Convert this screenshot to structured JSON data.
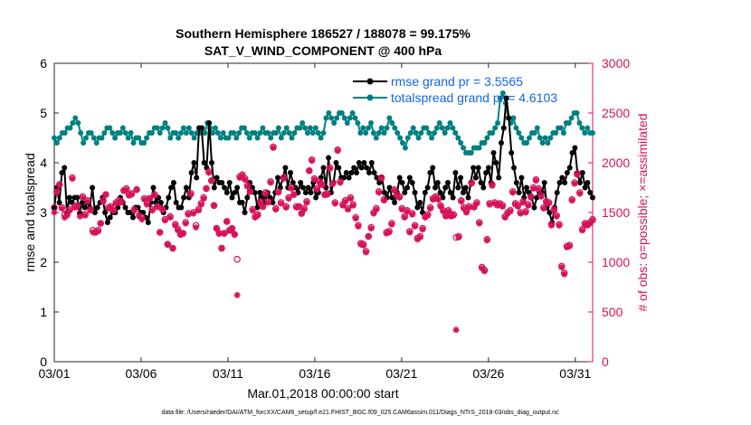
{
  "chart_data": {
    "type": "line",
    "title_line1": "Southern Hemisphere 186527 / 188078 = 99.175%",
    "title_line2": "SAT_V_WIND_COMPONENT @ 400 hPa",
    "xlabel": "Mar.01,2018 00:00:00 start",
    "ylabel_left": "rmse and totalspread",
    "ylabel_right": "# of obs: o=possible; ×=assimilated",
    "footer": "data file: /Users/raeder/DAI/ATM_forcXX/CAM6_setup/f.e21.FHIST_BGC.f09_025.CAM6assim.011/Diags_NTrS_2018-03/obs_diag_output.nc",
    "x_range": [
      1,
      32
    ],
    "x_ticks": [
      1,
      6,
      11,
      16,
      21,
      26,
      31
    ],
    "x_tick_labels": [
      "03/01",
      "03/06",
      "03/11",
      "03/16",
      "03/21",
      "03/26",
      "03/31"
    ],
    "ylim_left": [
      0,
      6
    ],
    "y_ticks_left": [
      "0",
      "1",
      "2",
      "3",
      "4",
      "5",
      "6"
    ],
    "ylim_right": [
      0,
      3000
    ],
    "y_ticks_right": [
      "0",
      "500",
      "1000",
      "1500",
      "2000",
      "2500",
      "3000"
    ],
    "series": [
      {
        "name": "rmse grand pr = 3.5565",
        "color": "#000000",
        "axis": "left",
        "values": [
          3.1,
          3.5,
          3.2,
          3.8,
          3.9,
          3.0,
          3.3,
          3.2,
          3.3,
          3.3,
          3.0,
          3.2,
          3.1,
          3.2,
          3.1,
          3.5,
          3.0,
          3.1,
          3.2,
          3.3,
          3.0,
          2.8,
          2.9,
          3.0,
          3.0,
          3.1,
          3.3,
          3.2,
          3.1,
          3.0,
          3.0,
          2.9,
          3.1,
          3.1,
          3.0,
          3.0,
          2.9,
          2.8,
          3.2,
          3.5,
          3.2,
          3.3,
          3.2,
          3.0,
          3.1,
          3.3,
          3.5,
          3.6,
          3.2,
          3.1,
          3.1,
          3.3,
          3.5,
          3.3,
          3.8,
          4.0,
          3.7,
          4.7,
          4.7,
          4.0,
          3.9,
          4.8,
          4.0,
          3.5,
          3.7,
          3.6,
          3.6,
          3.5,
          3.4,
          3.6,
          3.3,
          3.4,
          3.5,
          3.2,
          3.2,
          3.0,
          3.3,
          3.6,
          3.5,
          3.4,
          3.1,
          3.4,
          3.3,
          3.2,
          3.4,
          3.3,
          3.2,
          3.4,
          3.7,
          3.5,
          3.7,
          3.9,
          3.5,
          3.8,
          3.6,
          3.5,
          3.4,
          3.6,
          3.5,
          3.4,
          3.5,
          3.4,
          3.6,
          3.3,
          3.4,
          3.7,
          3.9,
          3.5,
          4.1,
          3.4,
          3.6,
          4.0,
          3.9,
          3.7,
          3.7,
          3.8,
          3.7,
          3.8,
          3.9,
          3.8,
          4.0,
          3.9,
          4.0,
          3.9,
          3.8,
          4.0,
          3.8,
          3.7,
          3.6,
          3.7,
          3.4,
          3.3,
          3.5,
          3.3,
          3.2,
          3.4,
          3.7,
          3.6,
          3.4,
          3.5,
          3.7,
          3.6,
          3.4,
          3.1,
          3.2,
          3.0,
          3.4,
          3.5,
          3.8,
          3.9,
          3.5,
          3.6,
          3.4,
          3.3,
          3.5,
          3.6,
          3.4,
          3.3,
          3.8,
          3.5,
          3.7,
          3.4,
          3.5,
          3.3,
          3.6,
          3.9,
          3.7,
          3.9,
          3.6,
          3.5,
          3.8,
          3.9,
          3.6,
          4.2,
          4.0,
          3.7,
          4.4,
          4.7,
          5.3,
          4.9,
          4.2,
          3.9,
          3.6,
          3.4,
          3.7,
          3.3,
          3.5,
          3.4,
          3.3,
          3.1,
          3.3,
          3.4,
          3.4,
          3.6,
          3.1,
          3.0,
          2.8,
          3.1,
          3.4,
          3.6,
          3.7,
          3.6,
          3.8,
          3.9,
          4.2,
          4.3,
          3.8,
          3.6,
          3.8,
          3.5,
          3.6,
          3.4,
          3.3
        ]
      },
      {
        "name": "totalspread grand pr = 4.6103",
        "color": "#008080",
        "axis": "left",
        "values": [
          4.5,
          4.4,
          4.5,
          4.6,
          4.6,
          4.7,
          4.7,
          4.8,
          4.9,
          4.8,
          4.6,
          4.4,
          4.5,
          4.6,
          4.6,
          4.5,
          4.4,
          4.5,
          4.5,
          4.6,
          4.7,
          4.7,
          4.6,
          4.5,
          4.6,
          4.6,
          4.7,
          4.6,
          4.5,
          4.6,
          4.4,
          4.5,
          4.5,
          4.4,
          4.4,
          4.5,
          4.6,
          4.6,
          4.7,
          4.7,
          4.6,
          4.7,
          4.8,
          4.7,
          4.5,
          4.6,
          4.6,
          4.5,
          4.6,
          4.7,
          4.6,
          4.7,
          4.6,
          4.5,
          4.6,
          4.6,
          4.7,
          4.6,
          4.8,
          4.7,
          4.6,
          4.7,
          4.6,
          4.5,
          4.6,
          4.5,
          4.5,
          4.6,
          4.6,
          4.5,
          4.6,
          4.7,
          4.7,
          4.6,
          4.5,
          4.6,
          4.6,
          4.5,
          4.6,
          4.7,
          4.6,
          4.6,
          4.5,
          4.6,
          4.6,
          4.7,
          4.5,
          4.6,
          4.7,
          4.6,
          4.5,
          4.6,
          4.7,
          4.7,
          4.8,
          4.7,
          4.6,
          4.7,
          4.6,
          4.7,
          4.6,
          4.5,
          4.6,
          4.9,
          5.0,
          4.9,
          4.8,
          4.9,
          5.0,
          5.0,
          4.9,
          4.8,
          4.9,
          5.0,
          4.9,
          4.8,
          4.6,
          4.7,
          4.6,
          4.7,
          4.8,
          4.6,
          4.5,
          4.6,
          4.7,
          4.6,
          4.7,
          4.9,
          4.8,
          4.7,
          4.6,
          4.5,
          4.4,
          4.3,
          4.5,
          4.6,
          4.7,
          4.6,
          4.5,
          4.6,
          4.7,
          4.7,
          4.6,
          4.5,
          4.6,
          4.7,
          4.8,
          4.7,
          4.6,
          4.7,
          4.8,
          4.7,
          4.6,
          4.5,
          4.4,
          4.3,
          4.2,
          4.2,
          4.2,
          4.3,
          4.3,
          4.3,
          4.4,
          4.4,
          4.5,
          4.6,
          4.6,
          4.7,
          4.8,
          5.3,
          5.4,
          5.2,
          4.9,
          4.8,
          4.9,
          4.7,
          4.6,
          4.5,
          4.4,
          4.4,
          4.5,
          4.6,
          4.6,
          4.7,
          4.5,
          4.4,
          4.5,
          4.4,
          4.5,
          4.6,
          4.6,
          4.7,
          4.7,
          4.6,
          4.8,
          4.8,
          4.9,
          5.0,
          5.0,
          4.8,
          4.7,
          4.6,
          4.7,
          4.6,
          4.6
        ]
      }
    ],
    "obs_possible": {
      "name": "possible",
      "marker": "o",
      "color": "#d6125a",
      "values": [
        1550,
        1710,
        1780,
        1550,
        1480,
        1490,
        1530,
        1850,
        1560,
        1570,
        1490,
        1660,
        1480,
        1620,
        1530,
        1320,
        1300,
        1320,
        1390,
        1620,
        1680,
        1550,
        1560,
        1520,
        1600,
        1620,
        1610,
        1720,
        1740,
        1680,
        1690,
        1530,
        1730,
        1470,
        1450,
        1640,
        1590,
        1640,
        1530,
        1680,
        1560,
        1300,
        1530,
        1430,
        1180,
        1460,
        1140,
        1380,
        1330,
        1280,
        1290,
        1400,
        1490,
        1690,
        1500,
        1370,
        1530,
        1590,
        1650,
        1740,
        1910,
        1820,
        1570,
        1340,
        1290,
        1140,
        1290,
        1410,
        1320,
        1340,
        1280,
        1030,
        1860,
        1880,
        1840,
        1770,
        1710,
        1530,
        1460,
        1480,
        1610,
        1560,
        1700,
        1610,
        1810,
        2160,
        1540,
        1710,
        1600,
        1850,
        1560,
        1650,
        1750,
        1680,
        1560,
        1560,
        1490,
        1540,
        1610,
        1920,
        2030,
        1840,
        1740,
        1810,
        1780,
        1680,
        1690,
        1950,
        1790,
        1600,
        2130,
        1810,
        1580,
        1620,
        1540,
        1650,
        1580,
        1450,
        1370,
        1190,
        1180,
        1110,
        1260,
        1350,
        1500,
        1540,
        1710,
        1850,
        1630,
        1300,
        1310,
        1390,
        1730,
        1680,
        1660,
        1540,
        1460,
        1520,
        1310,
        1490,
        1370,
        1240,
        1260,
        1340,
        1460,
        1480,
        1550,
        1640,
        1660,
        1640,
        1570,
        1520,
        1470,
        1520,
        1470,
        1480,
        1250,
        1260,
        1620,
        1550,
        1510,
        1560,
        1800,
        1560,
        1600,
        1400,
        950,
        920,
        1230,
        1590,
        1780,
        1600,
        1580,
        1590,
        1570,
        1460,
        1500,
        1520,
        1710,
        1590,
        1570,
        1500,
        1610,
        1510,
        1580,
        1660,
        1750,
        1830,
        1740,
        1670,
        1550,
        1610,
        1600,
        1380,
        1530,
        1470,
        1380,
        960,
        890,
        1160,
        1170,
        1630,
        1800,
        1890,
        1700,
        1330,
        1390,
        1380,
        1400,
        1430
      ]
    },
    "obs_assimilated": {
      "name": "assimilated",
      "marker": "*",
      "color": "#d6125a",
      "values": [
        1500,
        1700,
        1780,
        1540,
        1450,
        1470,
        1520,
        1840,
        1550,
        1560,
        1460,
        1650,
        1470,
        1610,
        1520,
        1300,
        1300,
        1310,
        1390,
        1610,
        1680,
        1540,
        1550,
        1520,
        1590,
        1610,
        1600,
        1720,
        1730,
        1670,
        1680,
        1520,
        1730,
        1460,
        1430,
        1630,
        1580,
        1640,
        1520,
        1670,
        1560,
        1300,
        1530,
        1420,
        1180,
        1450,
        1140,
        1370,
        1320,
        1280,
        1290,
        1390,
        1480,
        1680,
        1490,
        1350,
        1520,
        1580,
        1640,
        1740,
        1900,
        1820,
        1570,
        1340,
        1290,
        1140,
        1290,
        1410,
        1320,
        1340,
        1280,
        670,
        1850,
        1870,
        1830,
        1760,
        1710,
        1520,
        1450,
        1470,
        1600,
        1560,
        1690,
        1600,
        1800,
        2150,
        1530,
        1700,
        1590,
        1840,
        1550,
        1640,
        1740,
        1680,
        1550,
        1560,
        1490,
        1530,
        1600,
        1920,
        2020,
        1830,
        1730,
        1800,
        1780,
        1680,
        1680,
        1940,
        1790,
        1590,
        2120,
        1800,
        1570,
        1610,
        1530,
        1640,
        1570,
        1440,
        1360,
        1180,
        1170,
        1100,
        1260,
        1340,
        1490,
        1530,
        1700,
        1840,
        1620,
        1290,
        1300,
        1380,
        1720,
        1670,
        1650,
        1530,
        1450,
        1510,
        1300,
        1480,
        1360,
        1230,
        1250,
        1330,
        1450,
        1470,
        1540,
        1630,
        1650,
        1630,
        1560,
        1510,
        1460,
        1510,
        1460,
        1470,
        320,
        1250,
        1610,
        1540,
        1500,
        1550,
        1790,
        1550,
        1590,
        1390,
        940,
        910,
        1220,
        1580,
        1770,
        1590,
        1570,
        1580,
        1560,
        1450,
        1490,
        1510,
        1700,
        1580,
        1560,
        1490,
        1600,
        1500,
        1570,
        1650,
        1740,
        1820,
        1730,
        1660,
        1540,
        1600,
        1590,
        1370,
        1520,
        1460,
        1370,
        950,
        880,
        1150,
        1160,
        1620,
        1790,
        1880,
        1690,
        1320,
        1380,
        1370,
        1390,
        1420
      ]
    }
  }
}
